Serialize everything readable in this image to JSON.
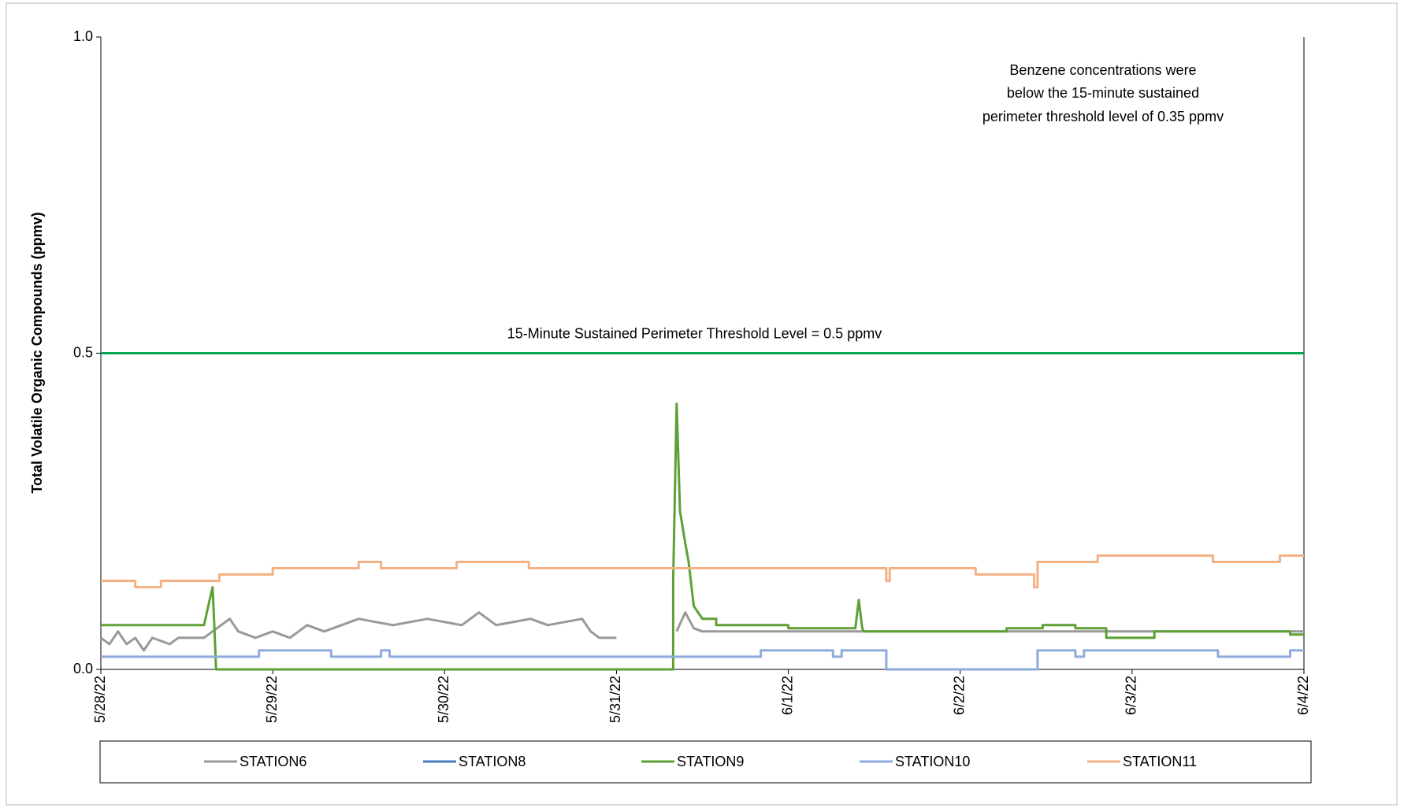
{
  "chart_data": {
    "type": "line",
    "y_label": "Total Volatile Organic Compounds (ppmv)",
    "annotation": [
      "Benzene concentrations were",
      "below the 15-minute sustained",
      "perimeter threshold level of 0.35 ppmv"
    ],
    "threshold": {
      "value": 0.5,
      "label": "15-Minute Sustained Perimeter Threshold Level = 0.5 ppmv",
      "color": "#00a650"
    },
    "xlim": [
      0,
      7
    ],
    "xticks": [
      {
        "value": 0,
        "label": "5/28/22"
      },
      {
        "value": 1,
        "label": "5/29/22"
      },
      {
        "value": 2,
        "label": "5/30/22"
      },
      {
        "value": 3,
        "label": "5/31/22"
      },
      {
        "value": 4,
        "label": "6/1/22"
      },
      {
        "value": 5,
        "label": "6/2/22"
      },
      {
        "value": 6,
        "label": "6/3/22"
      },
      {
        "value": 7,
        "label": "6/4/22"
      }
    ],
    "ylim": [
      0,
      1
    ],
    "yticks": [
      {
        "value": 0,
        "label": "0.0"
      },
      {
        "value": 0.5,
        "label": "0.5"
      },
      {
        "value": 1,
        "label": "1.0"
      }
    ],
    "series": [
      {
        "name": "STATION6",
        "color": "#999999",
        "x": [
          0,
          0.05,
          0.1,
          0.15,
          0.2,
          0.25,
          0.3,
          0.4,
          0.45,
          0.6,
          0.65,
          0.75,
          0.8,
          0.9,
          1.0,
          1.1,
          1.2,
          1.3,
          1.4,
          1.5,
          1.7,
          1.9,
          2.1,
          2.2,
          2.3,
          2.5,
          2.6,
          2.8,
          2.85,
          2.9,
          3.0,
          3.1,
          3.35,
          3.4,
          3.45,
          3.5,
          7
        ],
        "values": [
          0.05,
          0.04,
          0.06,
          0.04,
          0.05,
          0.03,
          0.05,
          0.04,
          0.05,
          0.05,
          0.06,
          0.08,
          0.06,
          0.05,
          0.06,
          0.05,
          0.07,
          0.06,
          0.07,
          0.08,
          0.07,
          0.08,
          0.07,
          0.09,
          0.07,
          0.08,
          0.07,
          0.08,
          0.06,
          0.05,
          0.05,
          null,
          0.06,
          0.09,
          0.065,
          0.06,
          0.06
        ]
      },
      {
        "name": "STATION8",
        "color": "#4a7ebb",
        "x": [],
        "values": []
      },
      {
        "name": "STATION9",
        "color": "#5ea035",
        "x": [
          0,
          0.6,
          0.65,
          0.66,
          0.67,
          3.33,
          3.33,
          3.35,
          3.37,
          3.4,
          3.42,
          3.45,
          3.5,
          3.58,
          3.58,
          4.0,
          4.0,
          4.39,
          4.41,
          4.43,
          4.44,
          5.27,
          5.27,
          5.48,
          5.48,
          5.67,
          5.67,
          5.85,
          5.85,
          6.13,
          6.13,
          6.92,
          6.92,
          7
        ],
        "values": [
          0.07,
          0.07,
          0.13,
          0.07,
          0,
          0,
          0.14,
          0.42,
          0.25,
          0.2,
          0.17,
          0.1,
          0.08,
          0.08,
          0.07,
          0.07,
          0.065,
          0.065,
          0.11,
          0.065,
          0.06,
          0.06,
          0.065,
          0.065,
          0.07,
          0.07,
          0.065,
          0.065,
          0.05,
          0.05,
          0.06,
          0.06,
          0.055,
          0.055
        ]
      },
      {
        "name": "STATION10",
        "color": "#8faadc",
        "x": [
          0,
          0.92,
          0.92,
          1.34,
          1.34,
          1.63,
          1.63,
          1.68,
          1.68,
          3.84,
          3.84,
          4.26,
          4.26,
          4.31,
          4.31,
          4.57,
          4.57,
          5.45,
          5.45,
          5.67,
          5.67,
          5.72,
          5.72,
          6.5,
          6.5,
          6.92,
          6.92,
          7
        ],
        "values": [
          0.02,
          0.02,
          0.03,
          0.03,
          0.02,
          0.02,
          0.03,
          0.03,
          0.02,
          0.02,
          0.03,
          0.03,
          0.02,
          0.02,
          0.03,
          0.03,
          0,
          0,
          0.03,
          0.03,
          0.02,
          0.02,
          0.03,
          0.03,
          0.02,
          0.02,
          0.03,
          0.03
        ]
      },
      {
        "name": "STATION11",
        "color": "#f4b183",
        "x": [
          0,
          0.2,
          0.2,
          0.35,
          0.35,
          0.69,
          0.69,
          1.0,
          1.0,
          1.5,
          1.5,
          1.63,
          1.63,
          2.07,
          2.07,
          2.49,
          2.49,
          4.57,
          4.57,
          4.59,
          4.59,
          5.09,
          5.09,
          5.43,
          5.43,
          5.45,
          5.45,
          5.8,
          5.8,
          6.47,
          6.47,
          6.86,
          6.86,
          7
        ],
        "values": [
          0.14,
          0.14,
          0.13,
          0.13,
          0.14,
          0.14,
          0.15,
          0.15,
          0.16,
          0.16,
          0.17,
          0.17,
          0.16,
          0.16,
          0.17,
          0.17,
          0.16,
          0.16,
          0.14,
          0.14,
          0.16,
          0.16,
          0.15,
          0.15,
          0.13,
          0.13,
          0.17,
          0.17,
          0.18,
          0.18,
          0.17,
          0.17,
          0.18,
          0.18
        ]
      }
    ]
  }
}
